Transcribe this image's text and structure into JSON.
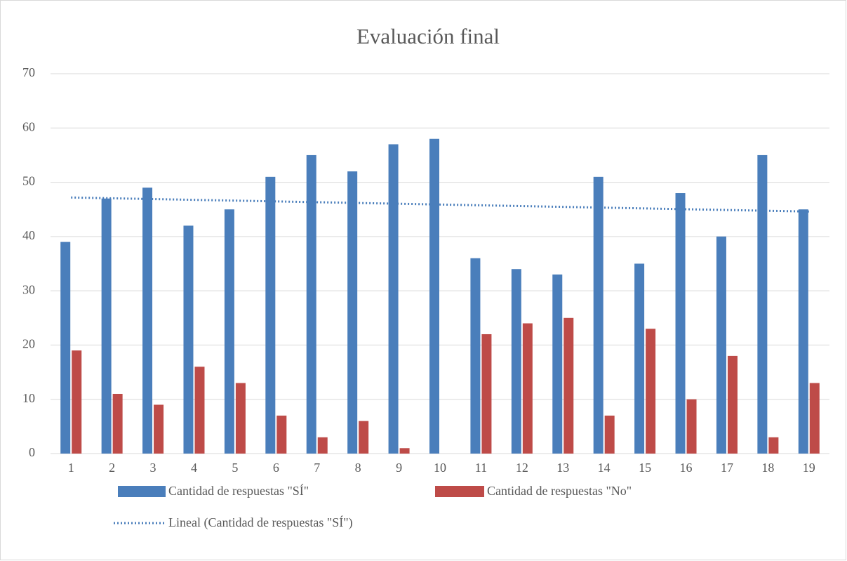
{
  "chart_data": {
    "type": "bar",
    "title": "Evaluación final",
    "categories": [
      "1",
      "2",
      "3",
      "4",
      "5",
      "6",
      "7",
      "8",
      "9",
      "10",
      "11",
      "12",
      "13",
      "14",
      "15",
      "16",
      "17",
      "18",
      "19"
    ],
    "series": [
      {
        "name": "Cantidad de respuestas \"SÍ\"",
        "color": "#4a7ebb",
        "values": [
          39,
          47,
          49,
          42,
          45,
          51,
          55,
          52,
          57,
          58,
          36,
          34,
          33,
          51,
          35,
          48,
          40,
          55,
          45
        ]
      },
      {
        "name": "Cantidad de respuestas \"No\"",
        "color": "#be4b48",
        "values": [
          19,
          11,
          9,
          16,
          13,
          7,
          3,
          6,
          1,
          0,
          22,
          24,
          25,
          7,
          23,
          10,
          18,
          3,
          13
        ]
      }
    ],
    "trendline": {
      "name": "Lineal (Cantidad de respuestas \"SÍ\")",
      "type": "linear",
      "series": 0,
      "color": "#4a7ebb"
    },
    "ylim": [
      0,
      70
    ],
    "yticks": [
      0,
      10,
      20,
      30,
      40,
      50,
      60,
      70
    ],
    "grid": true
  }
}
